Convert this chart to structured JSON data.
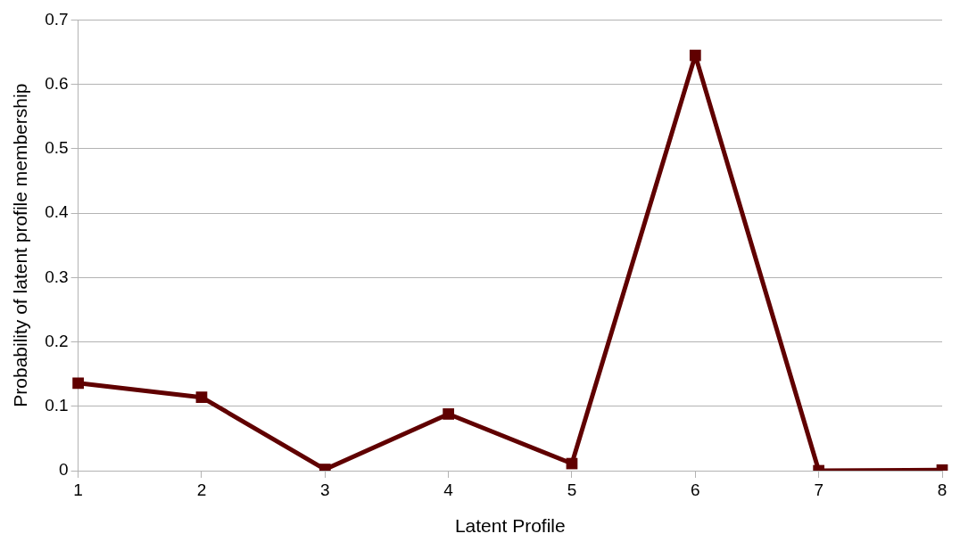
{
  "chart_data": {
    "type": "line",
    "xlabel": "Latent Profile",
    "ylabel": "Probability of latent profile membership",
    "categories": [
      "1",
      "2",
      "3",
      "4",
      "5",
      "6",
      "7",
      "8"
    ],
    "series": [
      {
        "color": "#600000",
        "values": [
          0.136,
          0.114,
          0.002,
          0.088,
          0.011,
          0.645,
          0,
          0.001
        ]
      }
    ],
    "ylim": [
      0,
      0.7
    ],
    "yticks": [
      0,
      0.1,
      0.2,
      0.3,
      0.4,
      0.5,
      0.6,
      0.7
    ],
    "grid": "y",
    "legend": false,
    "marker": "square",
    "line_style": "solid"
  }
}
